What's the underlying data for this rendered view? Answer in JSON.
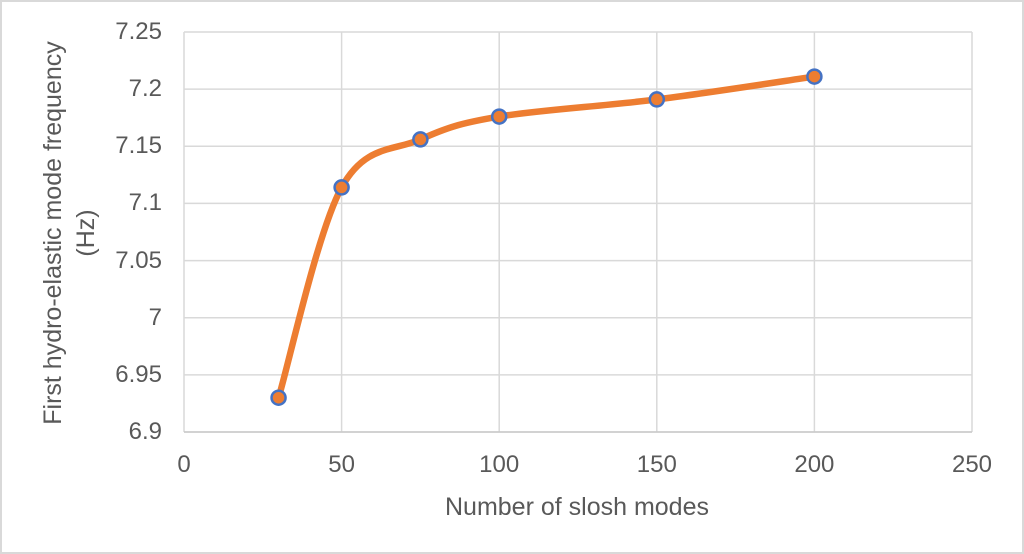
{
  "chart": {
    "y_axis": {
      "title_line1": "First hydro-elastic mode frequency",
      "title_line2": "(Hz)"
    },
    "x_axis": {
      "title": "Number of slosh modes"
    }
  },
  "chart_data": {
    "type": "line",
    "title": "",
    "xlabel": "Number of slosh modes",
    "ylabel": "First hydro-elastic mode frequency (Hz)",
    "x": [
      30,
      50,
      75,
      100,
      150,
      200
    ],
    "y": [
      6.93,
      7.114,
      7.156,
      7.176,
      7.191,
      7.211
    ],
    "series_name": "First hydro-elastic mode frequency",
    "xlim": [
      0,
      250
    ],
    "ylim": [
      6.9,
      7.25
    ],
    "x_ticks": [
      {
        "v": 0,
        "label": "0"
      },
      {
        "v": 50,
        "label": "50"
      },
      {
        "v": 100,
        "label": "100"
      },
      {
        "v": 150,
        "label": "150"
      },
      {
        "v": 200,
        "label": "200"
      },
      {
        "v": 250,
        "label": "250"
      }
    ],
    "y_ticks": [
      {
        "v": 6.9,
        "label": "6.9"
      },
      {
        "v": 6.95,
        "label": "6.95"
      },
      {
        "v": 7,
        "label": "7"
      },
      {
        "v": 7.05,
        "label": "7.05"
      },
      {
        "v": 7.1,
        "label": "7.1"
      },
      {
        "v": 7.15,
        "label": "7.15"
      },
      {
        "v": 7.2,
        "label": "7.2"
      },
      {
        "v": 7.25,
        "label": "7.25"
      }
    ],
    "grid": true,
    "smooth_line": true,
    "legend_position": "none",
    "colors": {
      "line": "#ED7D31",
      "marker_fill": "#ED7D31",
      "marker_stroke": "#4472C4",
      "gridline": "#D9D9D9",
      "axis_line": "#C9C9C9",
      "text": "#595959",
      "frame_border": "#D9D9D9",
      "background": "#FFFFFF"
    }
  }
}
